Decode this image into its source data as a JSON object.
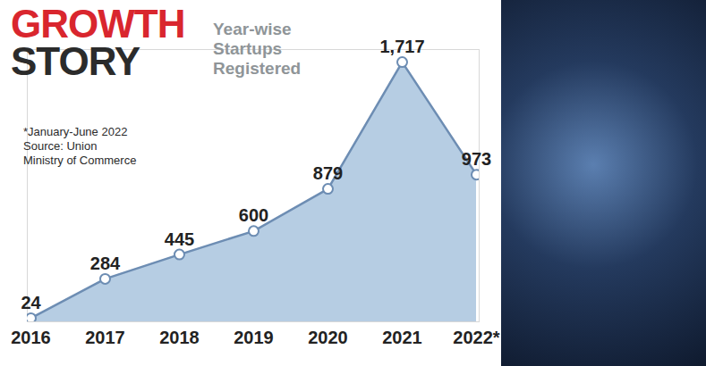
{
  "chart_data": {
    "type": "line",
    "title": "GROWTH STORY",
    "subtitle": "Year-wise Startups Registered",
    "annotations": [
      "*January-June 2022",
      "Source: Union Ministry of Commerce"
    ],
    "categories": [
      "2016",
      "2017",
      "2018",
      "2019",
      "2020",
      "2021",
      "2022*"
    ],
    "values": [
      24,
      284,
      445,
      600,
      879,
      1717,
      973
    ],
    "value_labels": [
      "24",
      "284",
      "445",
      "600",
      "879",
      "1,717",
      "973"
    ],
    "color": "#a9c4de",
    "ylim": [
      0,
      1800
    ],
    "data_labels": true,
    "tick_labels": "x",
    "grid": false
  }
}
